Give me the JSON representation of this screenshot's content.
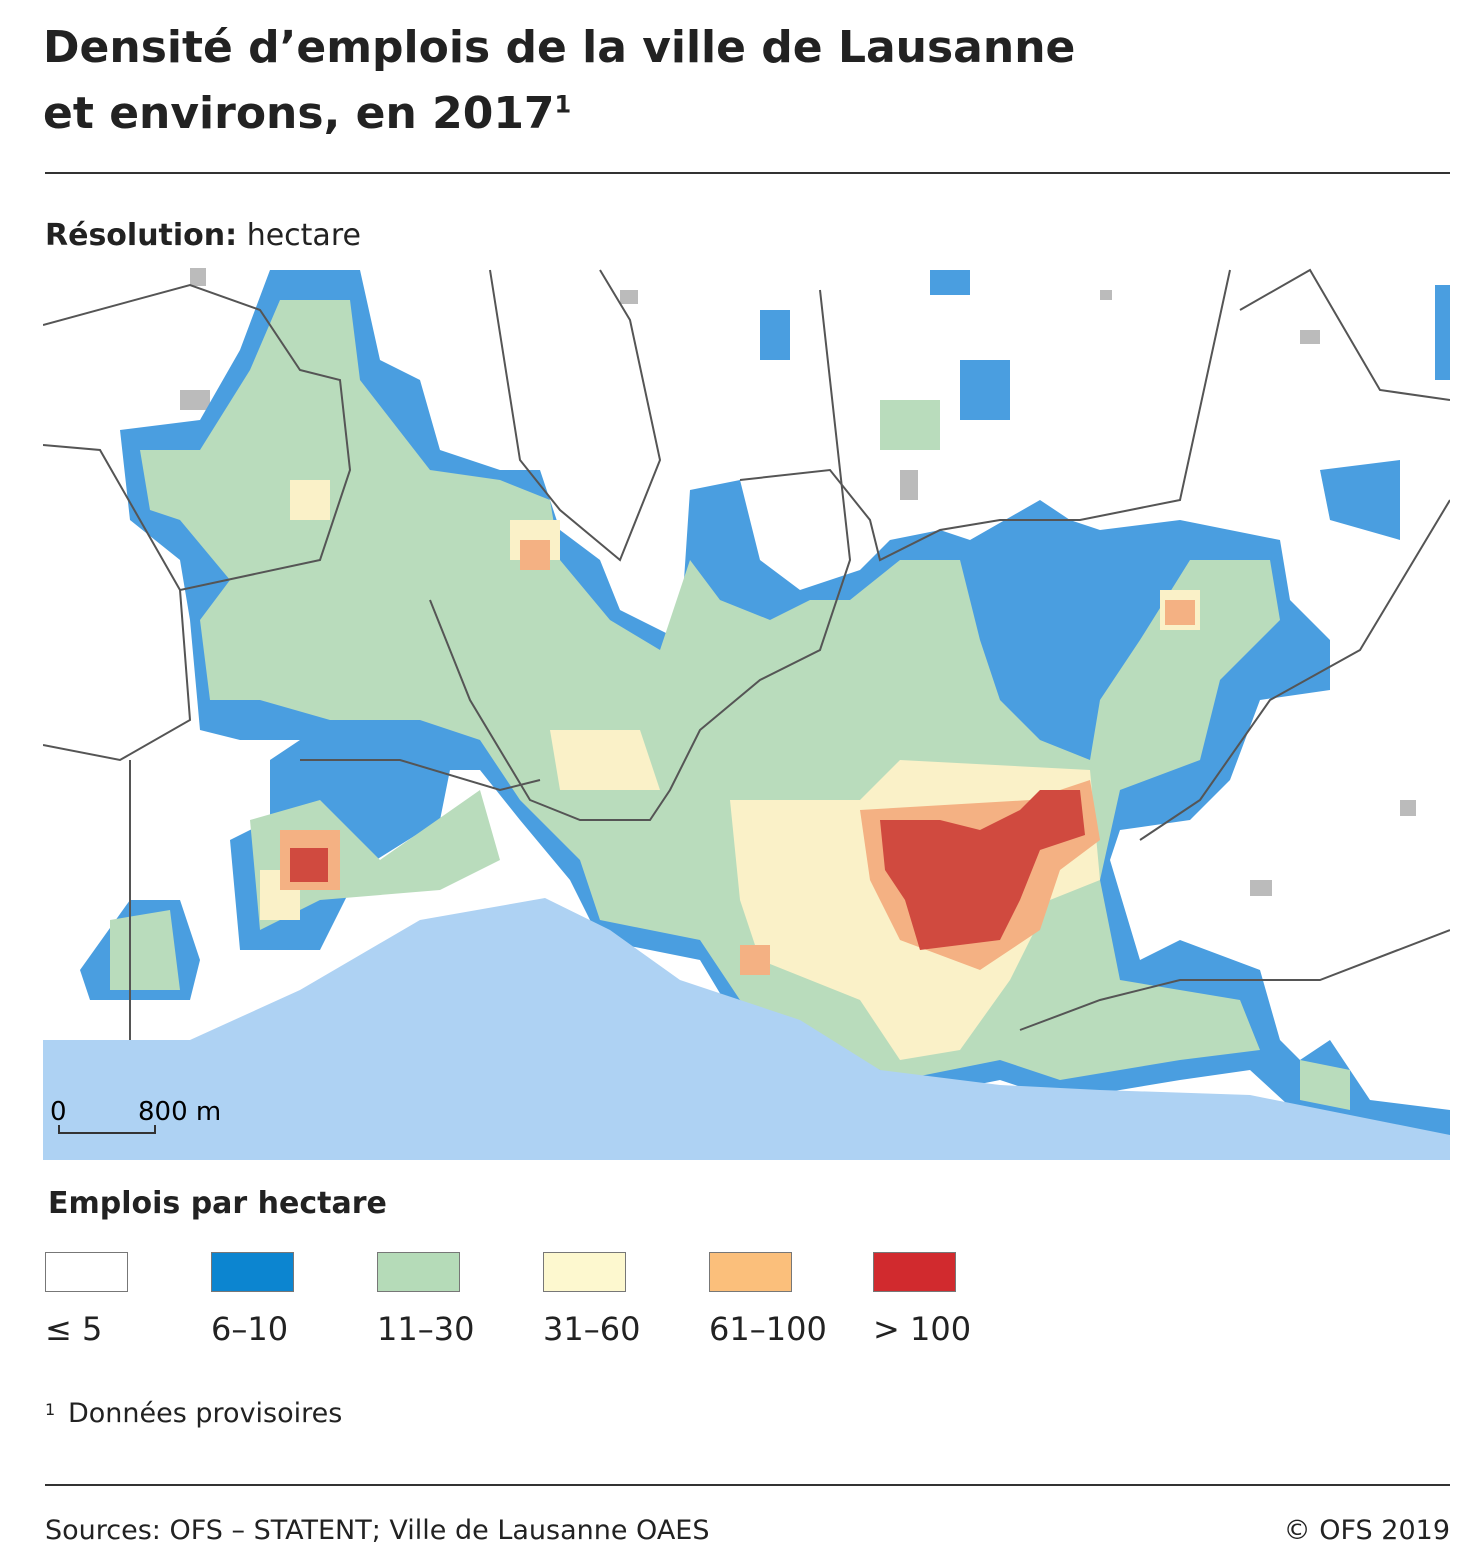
{
  "header": {
    "title_line1": "Densité d’emplois de la ville de Lausanne",
    "title_line2": "et environs, en 2017",
    "title_note": "1",
    "subtitle_label": "Résolution:",
    "subtitle_value": "hectare"
  },
  "map": {
    "scale_start": "0",
    "scale_end": "800 m"
  },
  "legend": {
    "title": "Emplois par hectare",
    "items": [
      {
        "label": "≤ 5",
        "color": "#ffffff"
      },
      {
        "label": "6–10",
        "color": "#0c85d0"
      },
      {
        "label": "11–30",
        "color": "#b5dbb8"
      },
      {
        "label": "31–60",
        "color": "#fdf8cf"
      },
      {
        "label": "61–100",
        "color": "#fbbf7b"
      },
      {
        "label": "> 100",
        "color": "#d12a2e"
      }
    ]
  },
  "footnote": {
    "marker": "1",
    "text": "Données provisoires"
  },
  "footer": {
    "sources": "Sources: OFS – STATENT; Ville de Lausanne OAES",
    "copyright": "© OFS 2019"
  }
}
